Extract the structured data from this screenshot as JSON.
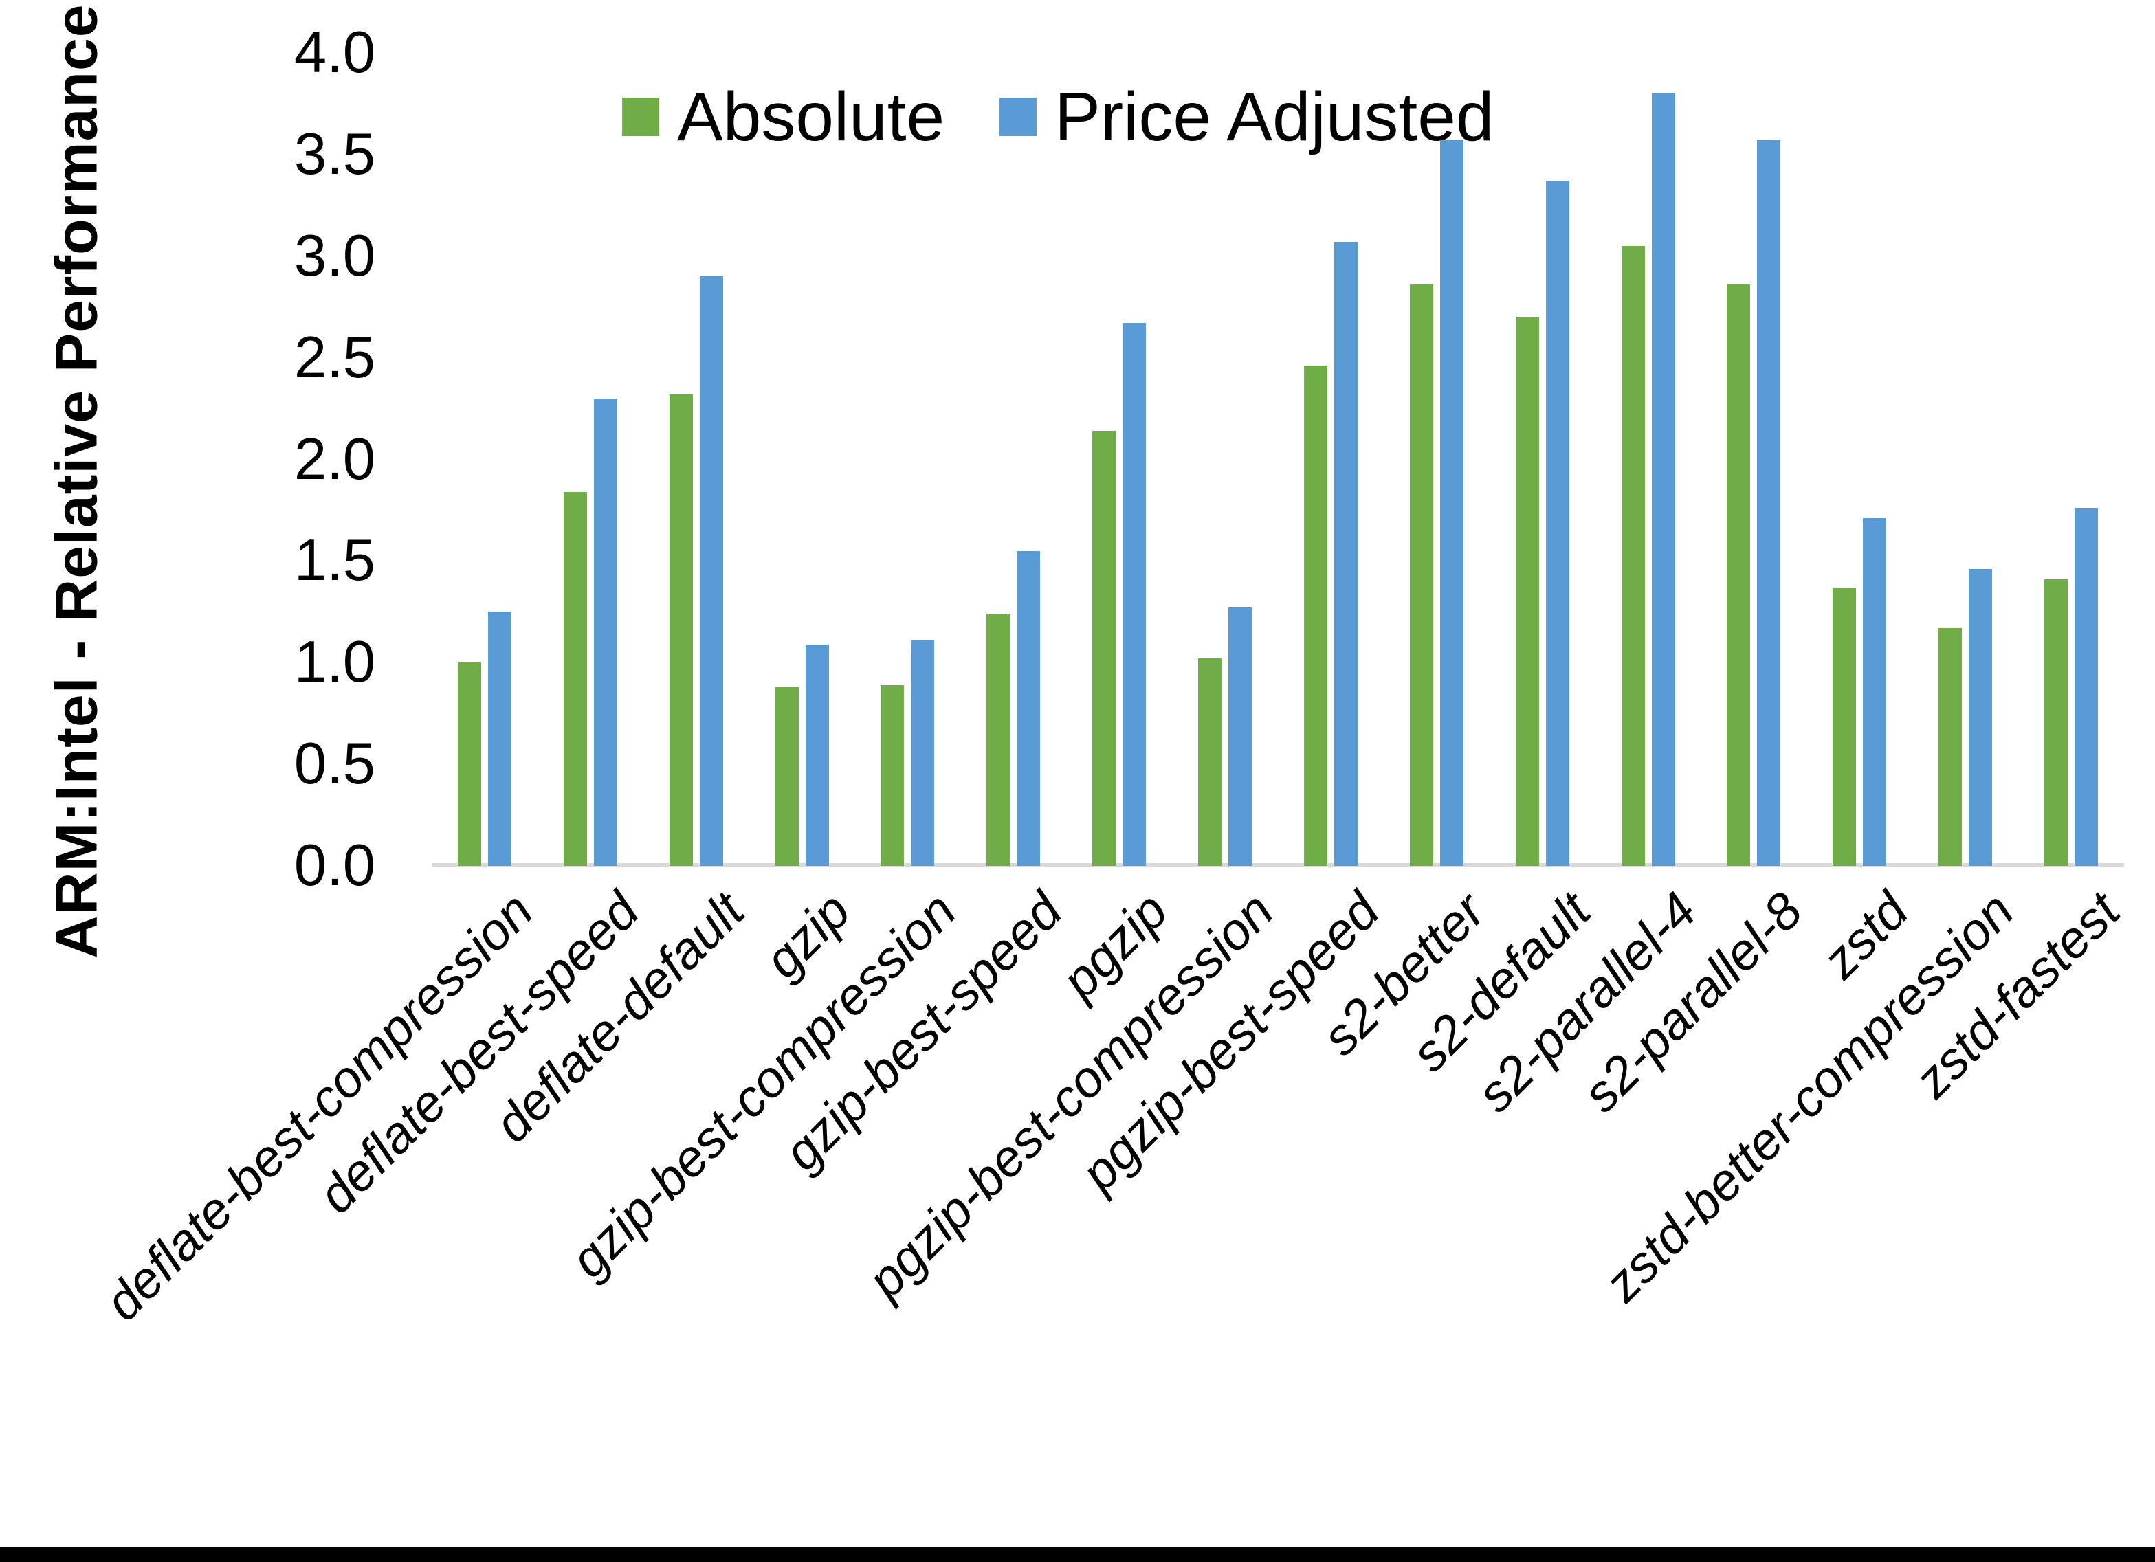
{
  "chart_data": {
    "type": "bar",
    "title": "",
    "ylabel": "ARM:Intel - Relative Performance",
    "xlabel": "",
    "ylim": [
      0.0,
      4.0
    ],
    "ytick_step": 0.5,
    "ytick_labels": [
      "0.0",
      "0.5",
      "1.0",
      "1.5",
      "2.0",
      "2.5",
      "3.0",
      "3.5",
      "4.0"
    ],
    "grid": false,
    "legend_position": "top-center-inside",
    "categories": [
      "deflate-best-compression",
      "deflate-best-speed",
      "deflate-default",
      "gzip",
      "gzip-best-compression",
      "gzip-best-speed",
      "pgzip",
      "pgzip-best-compression",
      "pgzip-best-speed",
      "s2-better",
      "s2-default",
      "s2-parallel-4",
      "s2-parallel-8",
      "zstd",
      "zstd-better-compression",
      "zstd-fastest"
    ],
    "series": [
      {
        "name": "Absolute",
        "color": "#70AD47",
        "values": [
          1.0,
          1.84,
          2.32,
          0.88,
          0.89,
          1.24,
          2.14,
          1.02,
          2.46,
          2.86,
          2.7,
          3.05,
          2.86,
          1.37,
          1.17,
          1.41
        ]
      },
      {
        "name": "Price Adjusted",
        "color": "#5B9BD5",
        "values": [
          1.25,
          2.3,
          2.9,
          1.09,
          1.11,
          1.55,
          2.67,
          1.27,
          3.07,
          3.57,
          3.37,
          3.8,
          3.57,
          1.71,
          1.46,
          1.76
        ]
      }
    ]
  },
  "colors": {
    "axis_line": "#D9D9D9",
    "text": "#000000",
    "background": "#FFFFFF",
    "bottom_border": "#000000"
  }
}
